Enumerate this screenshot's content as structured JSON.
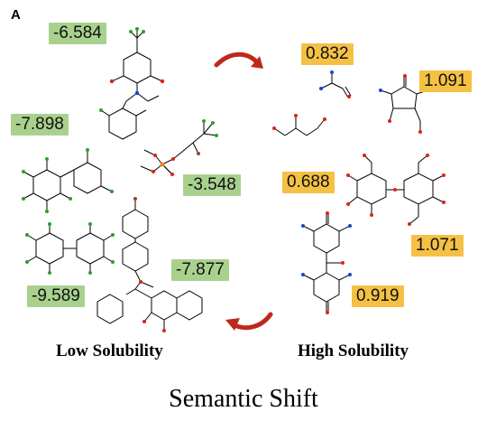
{
  "panel_label": "A",
  "left_group": {
    "label": "Low Solubility",
    "values": [
      "-6.584",
      "-7.898",
      "-3.548",
      "-9.589",
      "-7.877"
    ]
  },
  "right_group": {
    "label": "High Solubility",
    "values": [
      "0.832",
      "1.091",
      "0.688",
      "1.071",
      "0.919"
    ]
  },
  "caption": "Semantic Shift",
  "colors": {
    "low_badge": "#a9d18e",
    "high_badge": "#f5c144",
    "arrow": "#c0281c",
    "nitrogen": "#1f3fd6",
    "oxygen": "#e0201b",
    "halogen": "#2aa02a",
    "bond": "#000000"
  }
}
